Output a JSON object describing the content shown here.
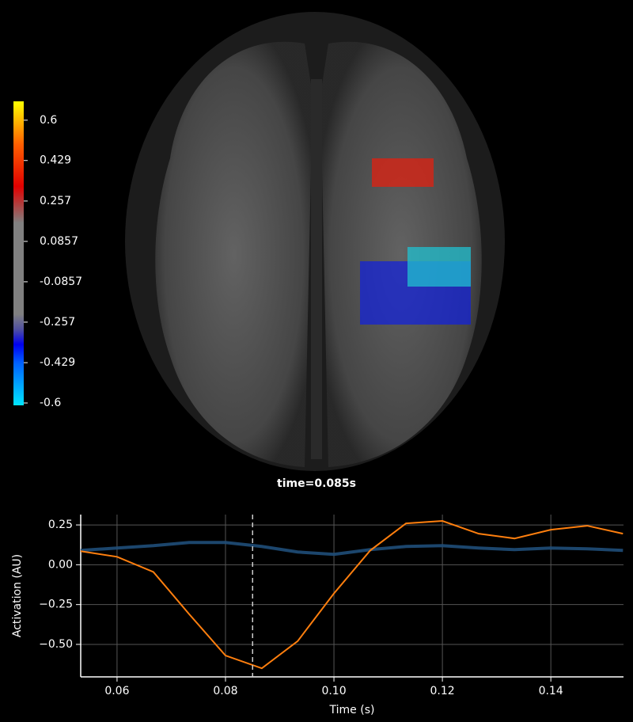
{
  "brain": {
    "time_label": "time=0.085s"
  },
  "chart_data": [
    {
      "type": "colorbar",
      "ylim": [
        -0.61,
        0.68
      ],
      "yticks": [
        0.6,
        0.429,
        0.257,
        0.0857,
        -0.0857,
        -0.257,
        -0.429,
        -0.6
      ]
    },
    {
      "type": "line",
      "x_label": "Time (s)",
      "y_label": "Activation (AU)",
      "x": [
        0.0533,
        0.06,
        0.0667,
        0.0733,
        0.08,
        0.0867,
        0.0933,
        0.1,
        0.1067,
        0.1133,
        0.12,
        0.1267,
        0.1333,
        0.14,
        0.1467,
        0.1533
      ],
      "series": [
        {
          "color": "#1f4e79",
          "values": [
            0.09,
            0.105,
            0.12,
            0.14,
            0.14,
            0.115,
            0.08,
            0.065,
            0.095,
            0.115,
            0.12,
            0.105,
            0.095,
            0.105,
            0.1,
            0.09
          ]
        },
        {
          "color": "#ff7f0e",
          "values": [
            0.085,
            0.05,
            -0.045,
            -0.31,
            -0.57,
            -0.65,
            -0.48,
            -0.18,
            0.09,
            0.26,
            0.275,
            0.195,
            0.165,
            0.22,
            0.245,
            0.195
          ]
        }
      ],
      "vline": 0.085,
      "xlim": [
        0.0533,
        0.1534
      ],
      "xticks": [
        0.06,
        0.08,
        {
          "value": 0.1,
          "label": "0.10"
        },
        0.12,
        0.14
      ],
      "ylim": [
        -0.704,
        0.315
      ],
      "yticks": [
        {
          "value": 0.25,
          "label": "0.25"
        },
        {
          "value": 0,
          "label": "0.00"
        },
        {
          "value": -0.25,
          "label": "−0.25"
        },
        {
          "value": -0.5,
          "label": "−0.50"
        }
      ],
      "grid": true
    }
  ]
}
